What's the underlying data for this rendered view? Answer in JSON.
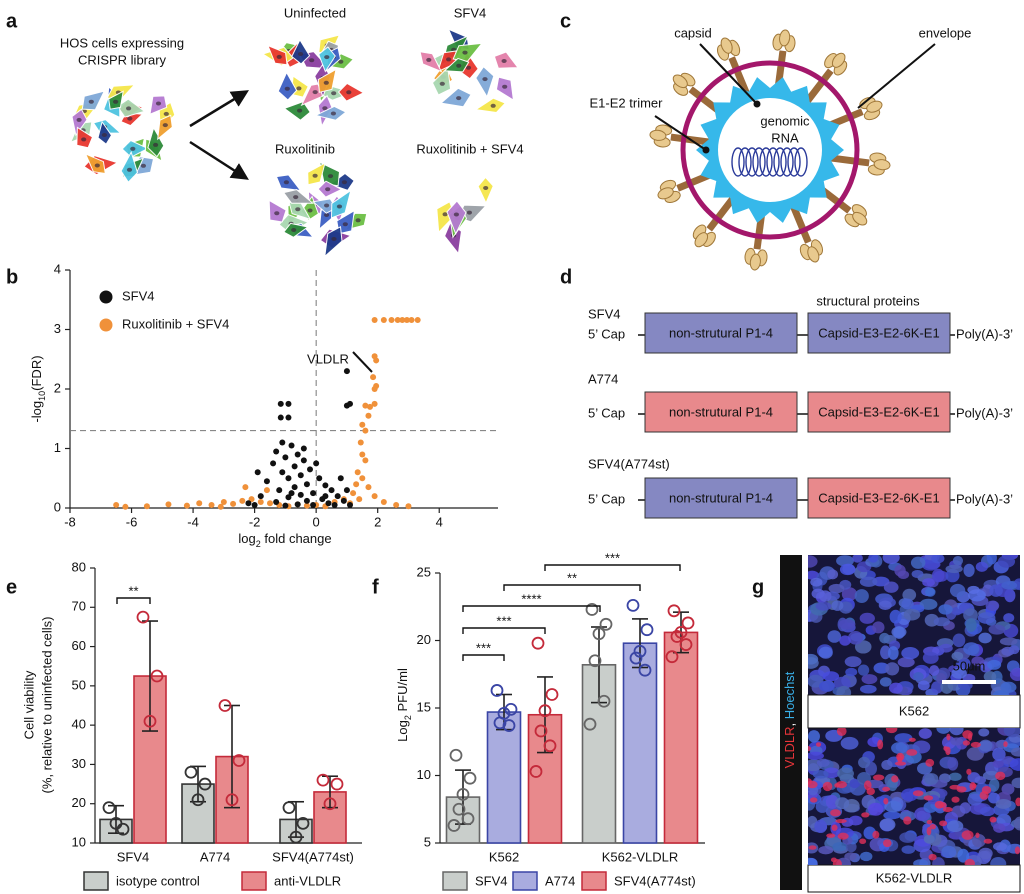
{
  "panel_labels": [
    "a",
    "b",
    "c",
    "d",
    "e",
    "f",
    "g"
  ],
  "panel_a": {
    "source": [
      "HOS cells expressing",
      "CRISPR library"
    ],
    "conditions": [
      "Uninfected",
      "SFV4",
      "Ruxolitinib",
      "Ruxolitinib + SFV4"
    ]
  },
  "panel_c": {
    "capsid": "capsid",
    "envelope": "envelope",
    "trimer": "E1-E2 trimer",
    "rna": [
      "genomic",
      "RNA"
    ]
  },
  "panel_d": {
    "header": "structural proteins",
    "cap": "5’ Cap",
    "tail": "Poly(A)-3’",
    "constructs": [
      {
        "name": "SFV4",
        "segments": [
          {
            "text": "non-strutural P1-4",
            "color": "#8588c2"
          },
          {
            "text": "Capsid-E3-E2-6K-E1",
            "color": "#8588c2"
          }
        ]
      },
      {
        "name": "A774",
        "segments": [
          {
            "text": "non-strutural P1-4",
            "color": "#e8898c"
          },
          {
            "text": "Capsid-E3-E2-6K-E1",
            "color": "#e8898c"
          }
        ]
      },
      {
        "name": "SFV4(A774st)",
        "segments": [
          {
            "text": "non-strutural P1-4",
            "color": "#8588c2"
          },
          {
            "text": "Capsid-E3-E2-6K-E1",
            "color": "#e8898c"
          }
        ]
      }
    ]
  },
  "panel_g": {
    "stain": [
      "VLDLR",
      ", ",
      "Hoechst"
    ],
    "scale_bar": "50μm",
    "images": [
      "K562",
      "K562-VLDLR"
    ]
  },
  "chart_data": [
    {
      "type": "scatter",
      "x_label": [
        "log",
        "2",
        " fold change"
      ],
      "y_label": [
        "-log",
        "10",
        "(FDR)"
      ],
      "xlim": [
        -8,
        5
      ],
      "xticks": [
        -8,
        -6,
        -4,
        -2,
        0,
        2,
        4
      ],
      "ylim": [
        0,
        4
      ],
      "yticks": [
        0,
        1,
        2,
        3,
        4
      ],
      "threshold_y": 1.3,
      "threshold_x": 0,
      "legend": "upper left",
      "annotation": "VLDLR",
      "series": [
        {
          "name": "SFV4",
          "color": "#111111",
          "x": [
            -1.15,
            -0.9,
            -1.15,
            -0.9,
            1.0,
            1.0,
            1.1,
            -1.1,
            -0.8,
            -1.3,
            -0.6,
            -1.0,
            -0.4,
            -1.4,
            -0.7,
            -0.2,
            -1.1,
            -0.5,
            0.1,
            -0.9,
            -1.6,
            -0.3,
            0.3,
            -0.7,
            -1.2,
            0.5,
            -0.1,
            -0.5,
            0.7,
            -1.8,
            -0.9,
            0.2,
            -0.3,
            0.9,
            -1.3,
            -2.2,
            0.4,
            -0.6,
            -0.1,
            0.6,
            -1.0,
            1.0,
            0.8,
            -1.9,
            -0.4,
            0.0,
            -0.8,
            0.3,
            -2.0,
            1.1
          ],
          "values": [
            1.75,
            1.75,
            1.52,
            1.52,
            2.3,
            1.72,
            1.75,
            1.1,
            1.05,
            0.95,
            0.9,
            0.85,
            0.8,
            0.75,
            0.7,
            0.65,
            0.6,
            0.55,
            0.5,
            0.5,
            0.45,
            0.4,
            0.38,
            0.35,
            0.3,
            0.3,
            0.25,
            0.22,
            0.2,
            0.2,
            0.18,
            0.15,
            0.12,
            0.12,
            0.1,
            0.08,
            0.08,
            0.06,
            0.05,
            0.05,
            0.04,
            0.3,
            0.5,
            0.6,
            1.0,
            0.75,
            0.25,
            0.2,
            0.05,
            0.05
          ]
        },
        {
          "name": "Ruxolitinib + SFV4",
          "color": "#f0913a",
          "x": [
            1.9,
            2.2,
            2.45,
            2.65,
            2.8,
            2.95,
            3.1,
            3.3,
            1.9,
            1.95,
            1.85,
            1.95,
            1.9,
            1.6,
            1.75,
            1.9,
            1.7,
            1.5,
            1.6,
            1.45,
            1.5,
            1.6,
            1.35,
            1.5,
            1.3,
            1.7,
            1.2,
            1.9,
            2.2,
            2.6,
            3.0,
            1.4,
            1.1,
            -6.5,
            -6.2,
            -5.5,
            -4.8,
            -4.2,
            -3.8,
            -3.4,
            -3.0,
            -2.7,
            -2.4,
            -2.1,
            -1.8,
            -1.5,
            -1.2,
            -0.9,
            -0.6,
            -0.3,
            0.0,
            0.3,
            0.6,
            0.9,
            -1.6,
            -2.3,
            -3.1
          ],
          "values": [
            3.16,
            3.16,
            3.16,
            3.16,
            3.16,
            3.16,
            3.16,
            3.16,
            2.55,
            2.48,
            2.2,
            2.05,
            2.0,
            1.72,
            1.7,
            1.75,
            1.55,
            1.4,
            1.3,
            1.1,
            0.9,
            0.8,
            0.6,
            0.5,
            0.4,
            0.35,
            0.25,
            0.2,
            0.1,
            0.05,
            0.03,
            0.15,
            0.08,
            0.05,
            0.02,
            0.03,
            0.06,
            0.04,
            0.08,
            0.05,
            0.1,
            0.07,
            0.12,
            0.15,
            0.1,
            0.08,
            0.05,
            0.03,
            0.06,
            0.04,
            0.05,
            0.03,
            0.1,
            0.15,
            0.3,
            0.35,
            0.02
          ]
        }
      ]
    },
    {
      "type": "bar",
      "y_label": [
        "Cell viability",
        "(%, relative to uninfected cells)"
      ],
      "categories": [
        "SFV4",
        "A774",
        "SFV4(A774st)"
      ],
      "ylim": [
        10,
        80
      ],
      "yticks": [
        10,
        20,
        30,
        40,
        50,
        60,
        70,
        80
      ],
      "significance": [
        "**"
      ],
      "legend": "bottom",
      "series": [
        {
          "name": "isotype control",
          "color": "#c9cecb",
          "edge": "#333333",
          "values": [
            16,
            25,
            16
          ],
          "errors": [
            3.5,
            4.5,
            4.5
          ],
          "points": [
            [
              19,
              13.5,
              15
            ],
            [
              28,
              25,
              21
            ],
            [
              19,
              15,
              11.5
            ]
          ]
        },
        {
          "name": "anti-VLDLR",
          "color": "#e8898c",
          "edge": "#c42a3a",
          "values": [
            52.5,
            32,
            23
          ],
          "errors": [
            14,
            13,
            4
          ],
          "points": [
            [
              67.5,
              52.5,
              41
            ],
            [
              45,
              31,
              21
            ],
            [
              26,
              25,
              20
            ]
          ]
        }
      ]
    },
    {
      "type": "bar",
      "y_label": [
        "Log",
        "2",
        " PFU/ml"
      ],
      "categories": [
        "K562",
        "K562-VLDLR"
      ],
      "ylim": [
        5,
        25
      ],
      "yticks": [
        5,
        10,
        15,
        20,
        25
      ],
      "significance": [
        "***",
        "***",
        "****",
        "**",
        "***"
      ],
      "legend": "bottom",
      "series": [
        {
          "name": "SFV4",
          "color": "#c9cecb",
          "edge": "#666666",
          "values": [
            8.4,
            18.2
          ],
          "errors": [
            2,
            2.8
          ],
          "points": [
            [
              11.5,
              9.8,
              8.6,
              7.5,
              6.8,
              6.3
            ],
            [
              22.3,
              21.2,
              20.5,
              18.5,
              15.5,
              13.8
            ]
          ]
        },
        {
          "name": "A774",
          "color": "#a9acdf",
          "edge": "#3a45a5",
          "values": [
            14.7,
            19.8
          ],
          "errors": [
            1.3,
            1.8
          ],
          "points": [
            [
              16.3,
              14.9,
              14.6,
              13.9,
              13.7
            ],
            [
              22.6,
              20.8,
              19.2,
              18.7,
              17.8
            ]
          ]
        },
        {
          "name": "SFV4(A774st)",
          "color": "#e8898c",
          "edge": "#c42a3a",
          "values": [
            14.5,
            20.6
          ],
          "errors": [
            2.8,
            1.5
          ],
          "points": [
            [
              19.8,
              16,
              14.8,
              13.3,
              12.2,
              10.3
            ],
            [
              22.2,
              21.3,
              20.6,
              20.3,
              19.7,
              18.8
            ]
          ]
        }
      ]
    }
  ]
}
